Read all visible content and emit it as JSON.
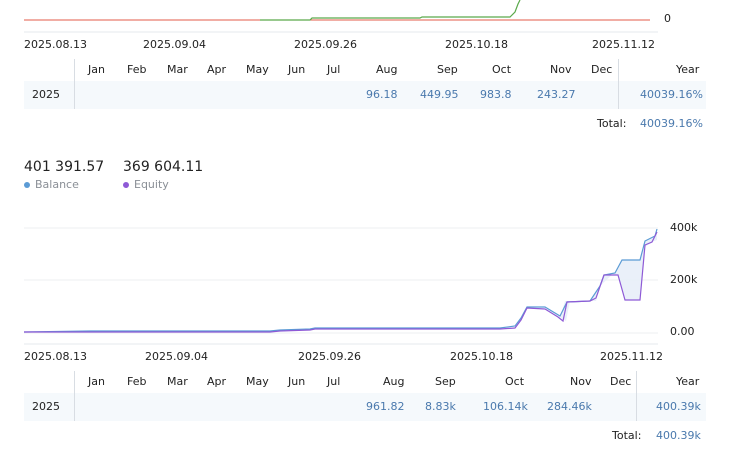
{
  "top_chart": {
    "y_ticks": [
      "0"
    ],
    "x_dates": [
      "2025.08.13",
      "2025.09.04",
      "2025.09.26",
      "2025.10.18",
      "2025.11.12"
    ],
    "colors": {
      "green": "#5aa94a",
      "red": "#e35b4a"
    }
  },
  "top_table": {
    "months": [
      "Jan",
      "Feb",
      "Mar",
      "Apr",
      "May",
      "Jun",
      "Jul",
      "Aug",
      "Sep",
      "Oct",
      "Nov",
      "Dec"
    ],
    "year_header": "Year",
    "row_year": "2025",
    "values": [
      "",
      "",
      "",
      "",
      "",
      "",
      "",
      "96.18",
      "449.95",
      "983.8",
      "243.27",
      ""
    ],
    "year_value": "40039.16%",
    "total_label": "Total:",
    "total_value": "40039.16%"
  },
  "stats": {
    "balance_value": "401 391.57",
    "balance_label": "Balance",
    "equity_value": "369 604.11",
    "equity_label": "Equity",
    "balance_color": "#5b9bd5",
    "equity_color": "#8e5ad6"
  },
  "bottom_chart": {
    "y_ticks": [
      "400k",
      "200k",
      "0.00"
    ],
    "x_dates": [
      "2025.08.13",
      "2025.09.04",
      "2025.09.26",
      "2025.10.18",
      "2025.11.12"
    ]
  },
  "bottom_table": {
    "months": [
      "Jan",
      "Feb",
      "Mar",
      "Apr",
      "May",
      "Jun",
      "Jul",
      "Aug",
      "Sep",
      "Oct",
      "Nov",
      "Dec"
    ],
    "year_header": "Year",
    "row_year": "2025",
    "values": [
      "",
      "",
      "",
      "",
      "",
      "",
      "",
      "961.82",
      "8.83k",
      "106.14k",
      "284.46k",
      ""
    ],
    "year_value": "400.39k",
    "total_label": "Total:",
    "total_value": "400.39k"
  }
}
